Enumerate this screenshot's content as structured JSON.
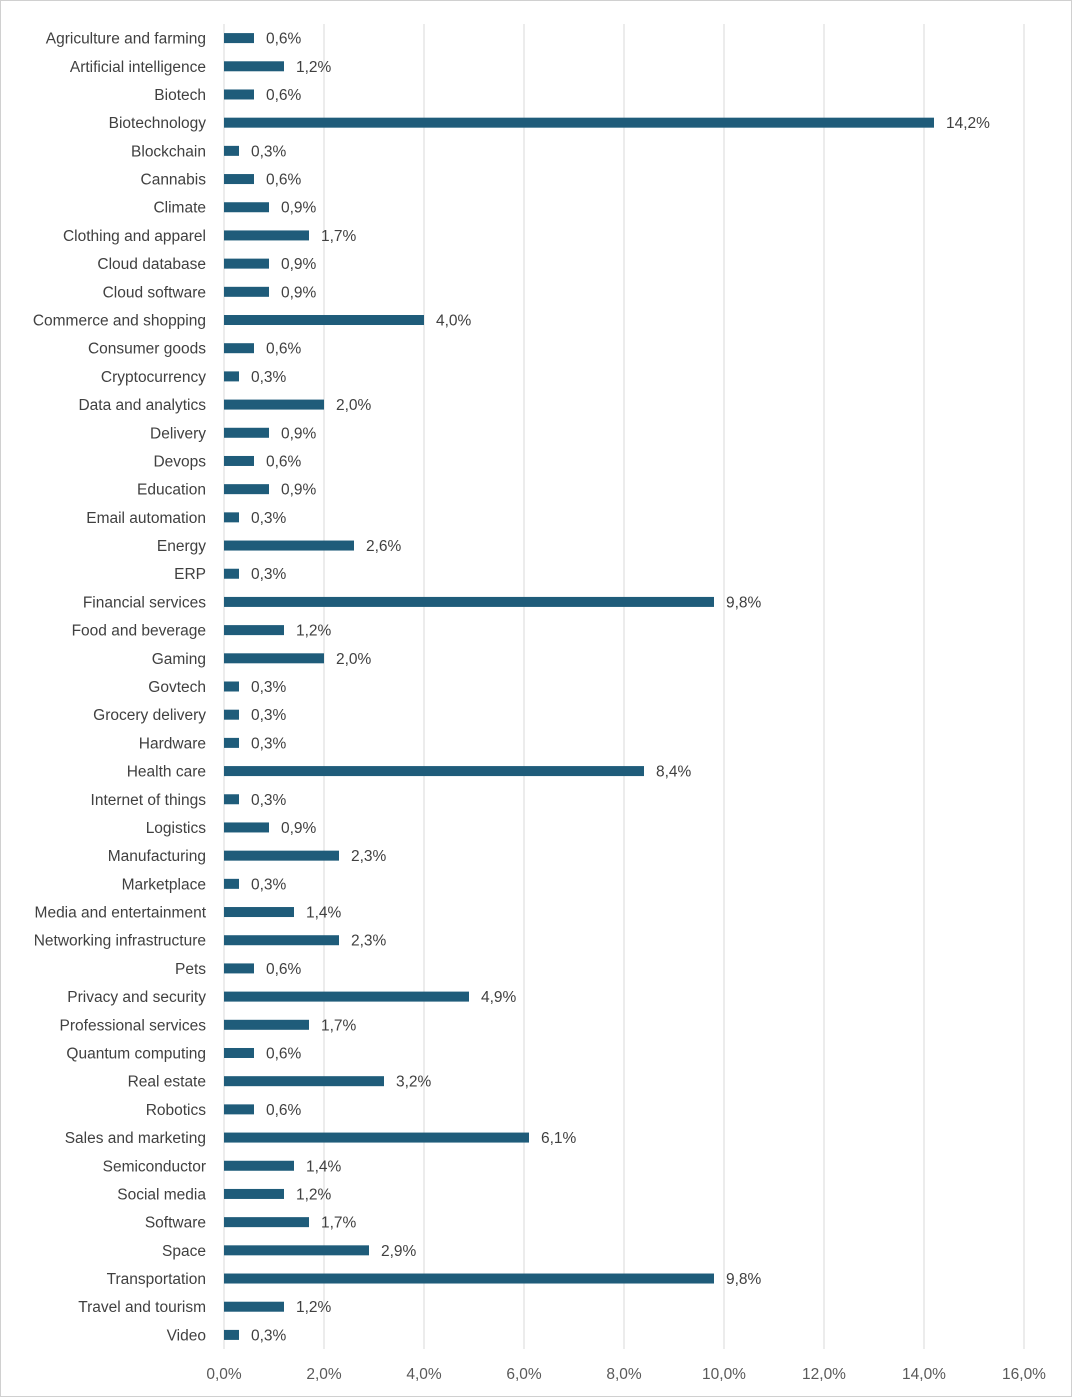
{
  "chart_data": {
    "type": "bar",
    "orientation": "horizontal",
    "title": "",
    "xlabel": "",
    "ylabel": "",
    "xlim": [
      0,
      16
    ],
    "ticks": [
      0,
      2,
      4,
      6,
      8,
      10,
      12,
      14,
      16
    ],
    "tick_labels": [
      "0,0%",
      "2,0%",
      "4,0%",
      "6,0%",
      "8,0%",
      "10,0%",
      "12,0%",
      "14,0%",
      "16,0%"
    ],
    "grid": true,
    "bar_color": "#1f5c7a",
    "categories": [
      "Agriculture and farming",
      "Artificial intelligence",
      "Biotech",
      "Biotechnology",
      "Blockchain",
      "Cannabis",
      "Climate",
      "Clothing and apparel",
      "Cloud database",
      "Cloud software",
      "Commerce and shopping",
      "Consumer goods",
      "Cryptocurrency",
      "Data and analytics",
      "Delivery",
      "Devops",
      "Education",
      "Email automation",
      "Energy",
      "ERP",
      "Financial services",
      "Food and beverage",
      "Gaming",
      "Govtech",
      "Grocery delivery",
      "Hardware",
      "Health care",
      "Internet of things",
      "Logistics",
      "Manufacturing",
      "Marketplace",
      "Media and entertainment",
      "Networking infrastructure",
      "Pets",
      "Privacy and security",
      "Professional services",
      "Quantum computing",
      "Real estate",
      "Robotics",
      "Sales and marketing",
      "Semiconductor",
      "Social media",
      "Software",
      "Space",
      "Transportation",
      "Travel and tourism",
      "Video"
    ],
    "values": [
      0.6,
      1.2,
      0.6,
      14.2,
      0.3,
      0.6,
      0.9,
      1.7,
      0.9,
      0.9,
      4.0,
      0.6,
      0.3,
      2.0,
      0.9,
      0.6,
      0.9,
      0.3,
      2.6,
      0.3,
      9.8,
      1.2,
      2.0,
      0.3,
      0.3,
      0.3,
      8.4,
      0.3,
      0.9,
      2.3,
      0.3,
      1.4,
      2.3,
      0.6,
      4.9,
      1.7,
      0.6,
      3.2,
      0.6,
      6.1,
      1.4,
      1.2,
      1.7,
      2.9,
      9.8,
      1.2,
      0.3
    ],
    "value_labels": [
      "0,6%",
      "1,2%",
      "0,6%",
      "14,2%",
      "0,3%",
      "0,6%",
      "0,9%",
      "1,7%",
      "0,9%",
      "0,9%",
      "4,0%",
      "0,6%",
      "0,3%",
      "2,0%",
      "0,9%",
      "0,6%",
      "0,9%",
      "0,3%",
      "2,6%",
      "0,3%",
      "9,8%",
      "1,2%",
      "2,0%",
      "0,3%",
      "0,3%",
      "0,3%",
      "8,4%",
      "0,3%",
      "0,9%",
      "2,3%",
      "0,3%",
      "1,4%",
      "2,3%",
      "0,6%",
      "4,9%",
      "1,7%",
      "0,6%",
      "3,2%",
      "0,6%",
      "6,1%",
      "1,4%",
      "1,2%",
      "1,7%",
      "2,9%",
      "9,8%",
      "1,2%",
      "0,3%"
    ]
  }
}
